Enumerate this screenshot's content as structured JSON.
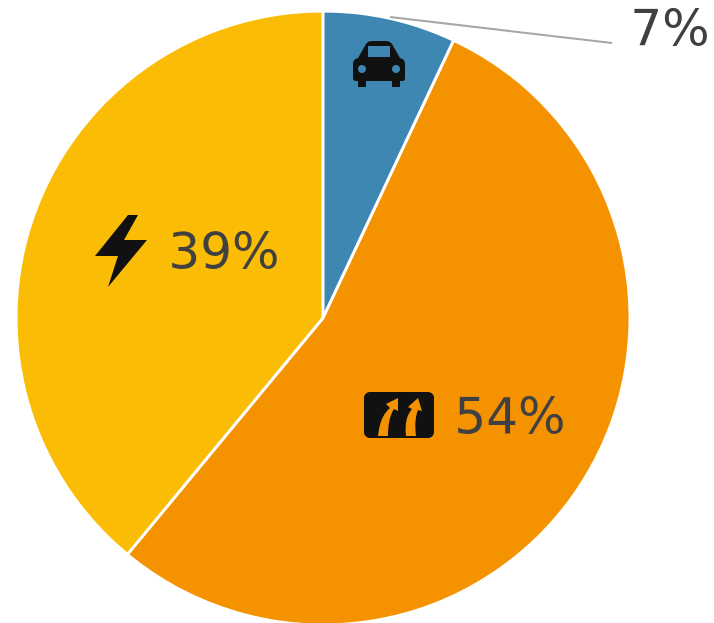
{
  "chart_data": {
    "type": "pie",
    "values": [
      7,
      54,
      39
    ],
    "value_labels": [
      "7%",
      "54%",
      "39%"
    ],
    "colors": [
      "#3f87b3",
      "#f59200",
      "#fbbc06"
    ],
    "start_angle": 0,
    "direction": "clockwise"
  }
}
